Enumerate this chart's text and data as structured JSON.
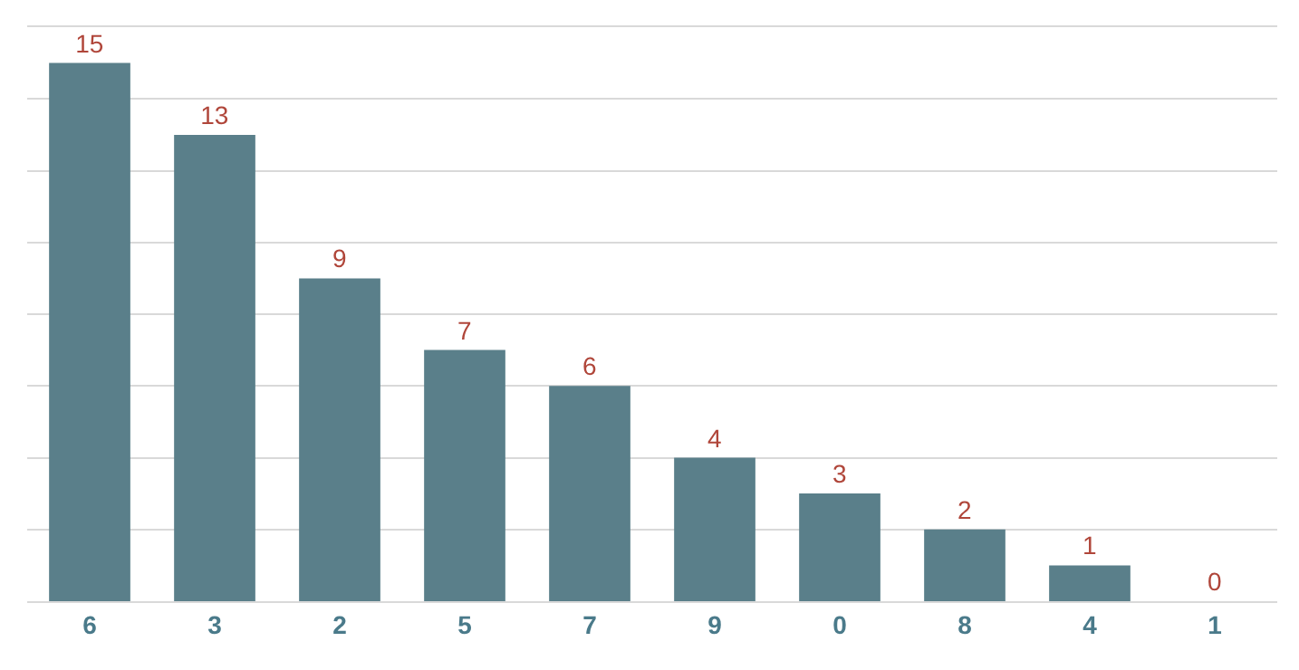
{
  "chart_data": {
    "type": "bar",
    "categories": [
      "6",
      "3",
      "2",
      "5",
      "7",
      "9",
      "0",
      "8",
      "4",
      "1"
    ],
    "values": [
      15,
      13,
      9,
      7,
      6,
      4,
      3,
      2,
      1,
      0
    ],
    "color": "#5a7f8a",
    "data_labels": true,
    "ylim": [
      0,
      16
    ],
    "yticks": [
      {
        "value": 0,
        "label": null
      },
      {
        "value": 2,
        "label": null
      },
      {
        "value": 4,
        "label": null
      },
      {
        "value": 6,
        "label": null
      },
      {
        "value": 8,
        "label": null
      },
      {
        "value": 10,
        "label": null
      },
      {
        "value": 12,
        "label": null
      },
      {
        "value": 14,
        "label": null
      }
    ],
    "grid": "y",
    "tick_labels": "x"
  }
}
